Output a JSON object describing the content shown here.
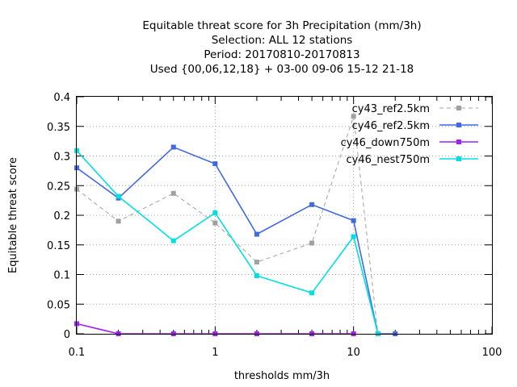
{
  "chart_data": {
    "type": "line",
    "title_lines": [
      "Equitable threat score  for 3h Precipitation (mm/3h)",
      "Selection: ALL      12 stations",
      "Period: 20170810-20170813",
      "Used {00,06,12,18} + 03-00 09-06 15-12 21-18"
    ],
    "xlabel": "thresholds mm/3h",
    "ylabel": "Equitable threat score",
    "x_scale": "log",
    "xlim": [
      0.1,
      100
    ],
    "ylim": [
      0,
      0.4
    ],
    "x_ticks": [
      0.1,
      1,
      10,
      100
    ],
    "x_tick_labels": [
      "0.1",
      "1",
      "10",
      "100"
    ],
    "y_ticks": [
      0,
      0.05,
      0.1,
      0.15,
      0.2,
      0.25,
      0.3,
      0.35,
      0.4
    ],
    "y_tick_labels": [
      "0",
      "0.05",
      "0.1",
      "0.15",
      "0.2",
      "0.25",
      "0.3",
      "0.35",
      "0.4"
    ],
    "grid": true,
    "legend_position": "top-right",
    "series": [
      {
        "name": "cy43_ref2.5km",
        "color": "#a0a0a0",
        "dashed": true,
        "x": [
          0.1,
          0.2,
          0.5,
          1,
          2,
          5,
          10,
          15
        ],
        "y": [
          0.244,
          0.19,
          0.237,
          0.187,
          0.121,
          0.153,
          0.367,
          0.0
        ]
      },
      {
        "name": "cy46_ref2.5km",
        "color": "#4169e1",
        "dashed": false,
        "x": [
          0.1,
          0.2,
          0.5,
          1,
          2,
          5,
          10,
          15,
          20
        ],
        "y": [
          0.28,
          0.229,
          0.315,
          0.287,
          0.168,
          0.218,
          0.191,
          0.0,
          0.0
        ]
      },
      {
        "name": "cy46_down750m",
        "color": "#a020f0",
        "dashed": false,
        "x": [
          0.1,
          0.2,
          0.5,
          1,
          2,
          5,
          10
        ],
        "y": [
          0.017,
          0.0,
          0.0,
          0.0,
          0.0,
          0.0,
          0.0
        ]
      },
      {
        "name": "cy46_nest750m",
        "color": "#00e0e0",
        "dashed": false,
        "x": [
          0.1,
          0.2,
          0.5,
          1,
          2,
          5,
          10,
          15
        ],
        "y": [
          0.309,
          0.232,
          0.157,
          0.204,
          0.098,
          0.069,
          0.164,
          0.0
        ]
      }
    ]
  }
}
